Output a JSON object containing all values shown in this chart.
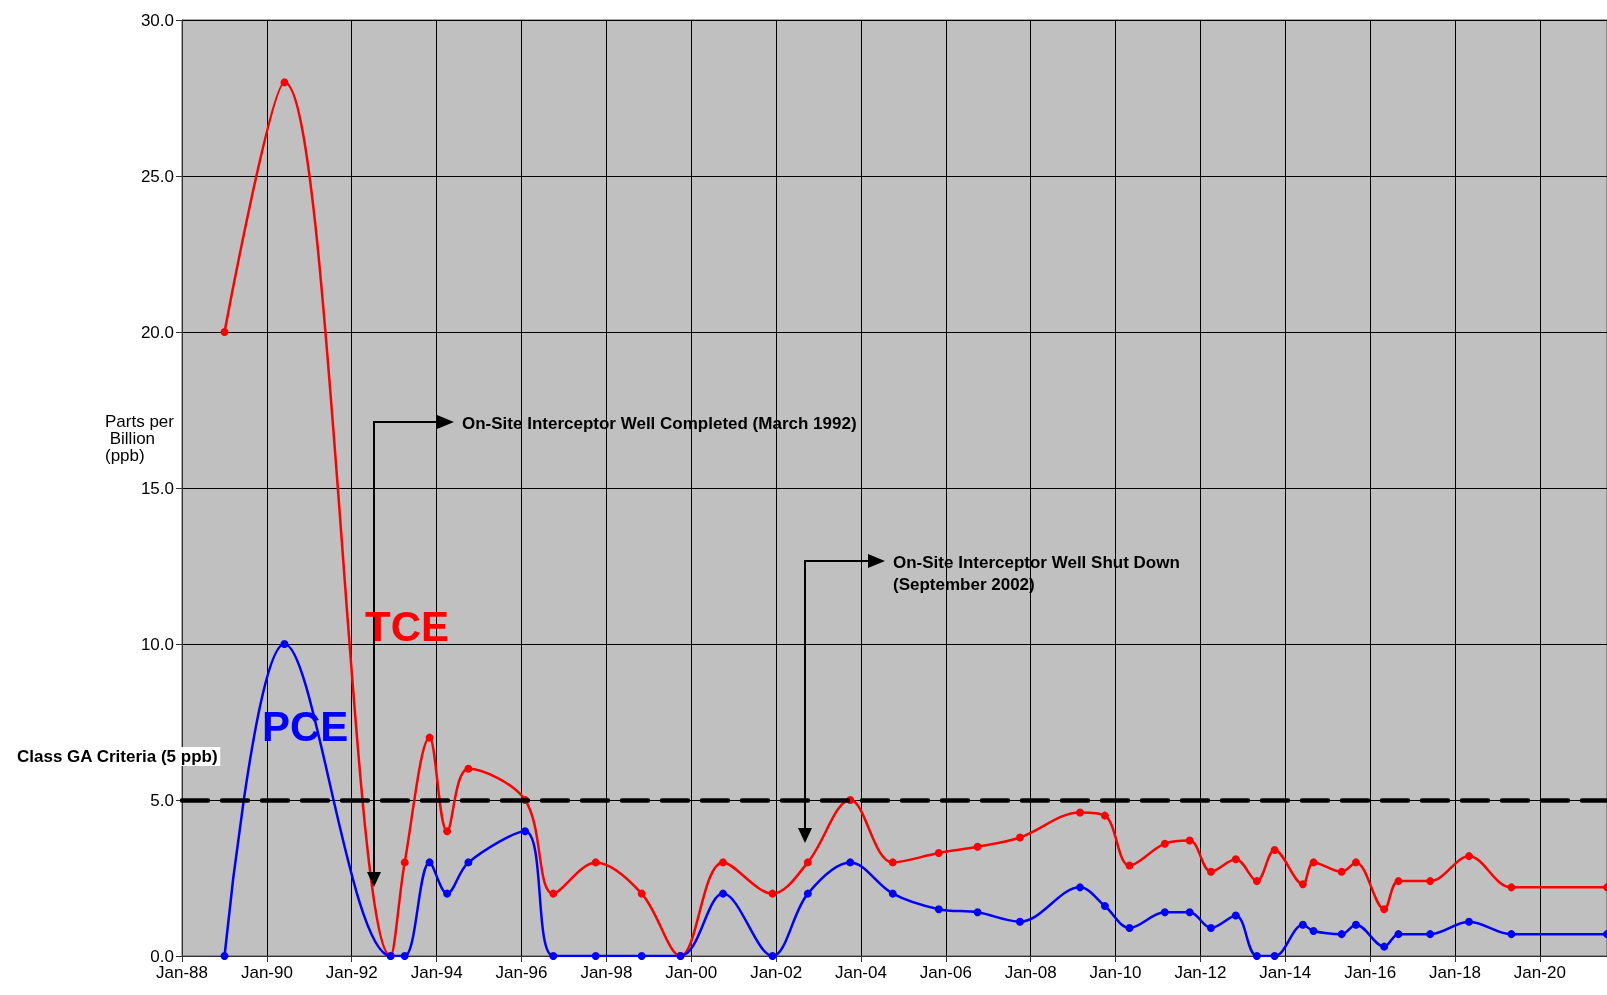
{
  "chart_data": {
    "type": "line",
    "ylabel": "Parts per Billion (ppb)",
    "xlim": [
      "1988-01",
      "2021-08"
    ],
    "xticks": [
      {
        "value": "1988-01",
        "label": "Jan-88"
      },
      {
        "value": "1990-01",
        "label": "Jan-90"
      },
      {
        "value": "1992-01",
        "label": "Jan-92"
      },
      {
        "value": "1994-01",
        "label": "Jan-94"
      },
      {
        "value": "1996-01",
        "label": "Jan-96"
      },
      {
        "value": "1998-01",
        "label": "Jan-98"
      },
      {
        "value": "2000-01",
        "label": "Jan-00"
      },
      {
        "value": "2002-01",
        "label": "Jan-02"
      },
      {
        "value": "2004-01",
        "label": "Jan-04"
      },
      {
        "value": "2006-01",
        "label": "Jan-06"
      },
      {
        "value": "2008-01",
        "label": "Jan-08"
      },
      {
        "value": "2010-01",
        "label": "Jan-10"
      },
      {
        "value": "2012-01",
        "label": "Jan-12"
      },
      {
        "value": "2014-01",
        "label": "Jan-14"
      },
      {
        "value": "2016-01",
        "label": "Jan-16"
      },
      {
        "value": "2018-01",
        "label": "Jan-18"
      },
      {
        "value": "2020-01",
        "label": "Jan-20"
      }
    ],
    "ylim": [
      0,
      30
    ],
    "yticks": [
      {
        "value": 0,
        "label": "0.0"
      },
      {
        "value": 5,
        "label": "5.0"
      },
      {
        "value": 10,
        "label": "10.0"
      },
      {
        "value": 15,
        "label": "15.0"
      },
      {
        "value": 20,
        "label": "20.0"
      },
      {
        "value": 25,
        "label": "25.0"
      },
      {
        "value": 30,
        "label": "30.0"
      }
    ],
    "grid": true,
    "legend": false,
    "marker": "circle",
    "line_style": "solid",
    "series": [
      {
        "name": "TCE",
        "color": "#ff0000",
        "x": [
          "1989-01",
          "1990-06",
          "1992-12",
          "1993-04",
          "1993-11",
          "1994-04",
          "1994-10",
          "1996-02",
          "1996-10",
          "1997-10",
          "1998-11",
          "1999-10",
          "2000-10",
          "2001-12",
          "2002-10",
          "2003-10",
          "2004-10",
          "2005-11",
          "2006-10",
          "2007-10",
          "2009-03",
          "2009-10",
          "2010-05",
          "2011-03",
          "2011-10",
          "2012-04",
          "2012-11",
          "2013-05",
          "2013-10",
          "2014-06",
          "2014-09",
          "2015-05",
          "2015-09",
          "2016-05",
          "2016-09",
          "2017-06",
          "2018-05",
          "2019-05",
          "2021-08"
        ],
        "values": [
          20,
          28,
          0,
          3,
          7,
          4,
          6,
          5,
          2,
          3,
          2,
          0,
          3,
          2,
          3,
          5,
          3,
          3.3,
          3.5,
          3.8,
          4.6,
          4.5,
          2.9,
          3.6,
          3.7,
          2.7,
          3.1,
          2.4,
          3.4,
          2.3,
          3,
          2.7,
          3,
          1.5,
          2.4,
          2.4,
          3.2,
          2.2,
          2.2
        ]
      },
      {
        "name": "PCE",
        "color": "#0000ff",
        "x": [
          "1989-01",
          "1990-06",
          "1992-12",
          "1993-04",
          "1993-11",
          "1994-04",
          "1994-10",
          "1996-02",
          "1996-10",
          "1997-10",
          "1998-11",
          "1999-10",
          "2000-10",
          "2001-12",
          "2002-10",
          "2003-10",
          "2004-10",
          "2005-11",
          "2006-10",
          "2007-10",
          "2009-03",
          "2009-10",
          "2010-05",
          "2011-03",
          "2011-10",
          "2012-04",
          "2012-11",
          "2013-05",
          "2013-10",
          "2014-06",
          "2014-09",
          "2015-05",
          "2015-09",
          "2016-05",
          "2016-09",
          "2017-06",
          "2018-05",
          "2019-05",
          "2021-08"
        ],
        "values": [
          0,
          10,
          0,
          0,
          3,
          2,
          3,
          4,
          0,
          0,
          0,
          0,
          2,
          0,
          2,
          3,
          2,
          1.5,
          1.4,
          1.1,
          2.2,
          1.6,
          0.9,
          1.4,
          1.4,
          0.9,
          1.3,
          0,
          0,
          1,
          0.8,
          0.7,
          1,
          0.3,
          0.7,
          0.7,
          1.1,
          0.7,
          0.7
        ]
      }
    ],
    "ref_lines": [
      {
        "axis": "y",
        "value": 5,
        "label": "Class GA Criteria (5 ppb)",
        "color": "#000000",
        "line_style": "dashed"
      }
    ],
    "annotations": [
      "On-Site Interceptor Well Completed (March 1992)",
      "On-Site Interceptor Well Shut Down (September 2002)"
    ]
  }
}
